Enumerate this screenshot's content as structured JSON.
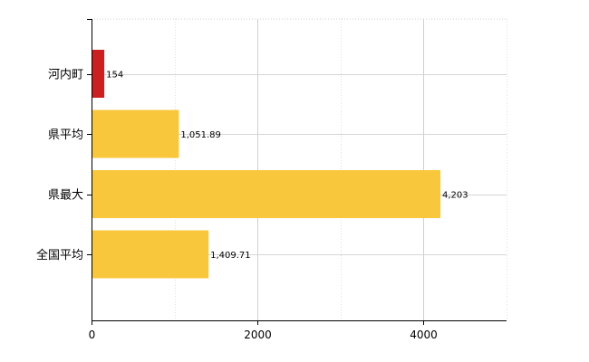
{
  "chart_data": {
    "type": "bar",
    "orientation": "horizontal",
    "categories": [
      "河内町",
      "県平均",
      "県最大",
      "全国平均"
    ],
    "values": [
      154,
      1051.89,
      4203,
      1409.71
    ],
    "value_labels": [
      "154",
      "1,051.89",
      "4,203",
      "1,409.71"
    ],
    "bar_colors": [
      "#cc1f1f",
      "#f9c73b",
      "#f9c73b",
      "#f9c73b"
    ],
    "xlim": [
      0,
      5000
    ],
    "x_ticks": [
      0,
      2000,
      4000
    ],
    "x_tick_labels": [
      "0",
      "2000",
      "4000"
    ],
    "grid": true,
    "title": "",
    "xlabel": "",
    "ylabel": ""
  }
}
